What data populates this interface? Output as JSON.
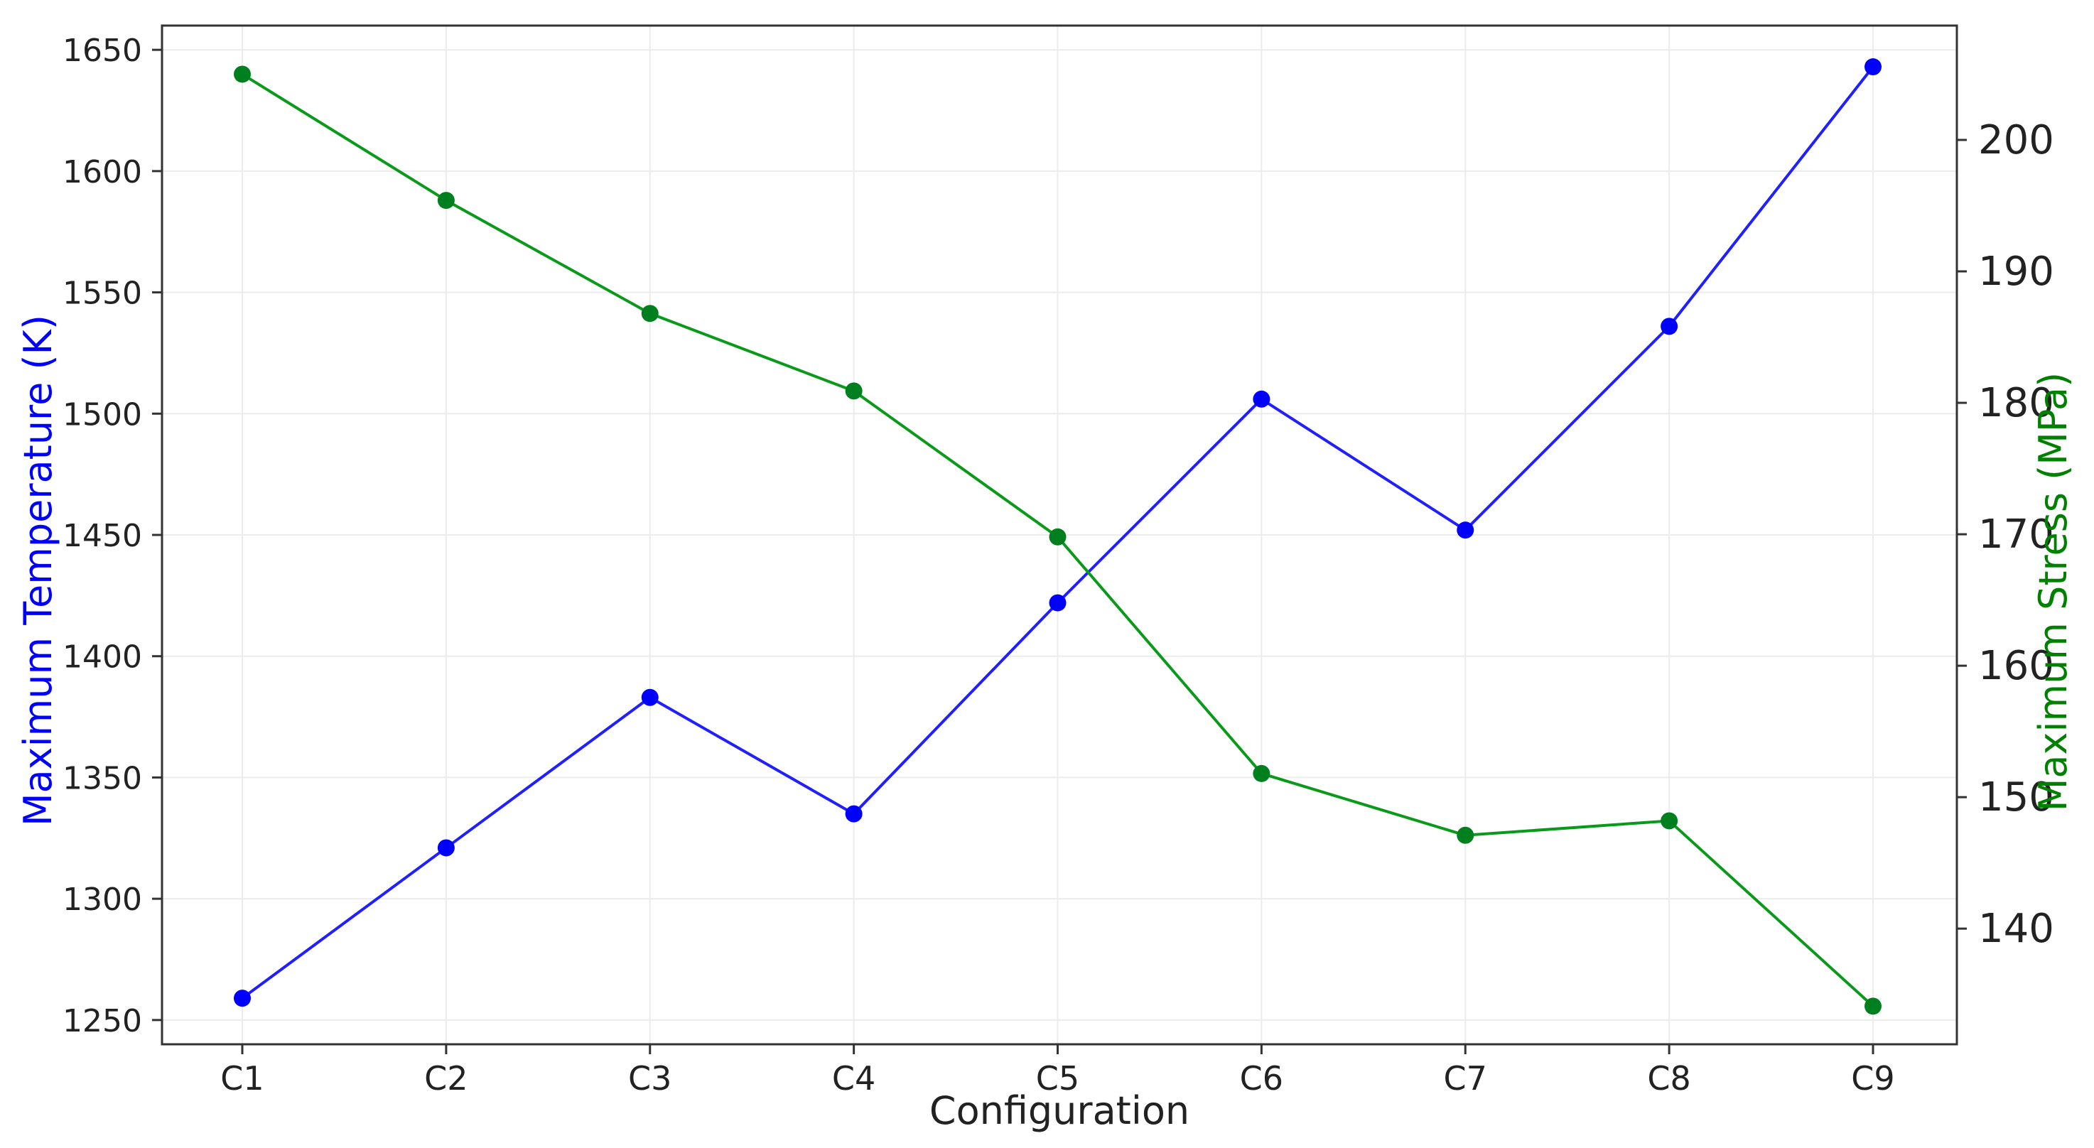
{
  "chart_data": {
    "type": "line",
    "xlabel": "Configuration",
    "categories": [
      "C1",
      "C2",
      "C3",
      "C4",
      "C5",
      "C6",
      "C7",
      "C8",
      "C9"
    ],
    "y_left": {
      "label": "Maximum Temperature (K)",
      "ticks": [
        1250,
        1300,
        1350,
        1400,
        1450,
        1500,
        1550,
        1600,
        1650
      ],
      "range": [
        1240,
        1660
      ],
      "color": "#0000ff"
    },
    "y_right": {
      "label": "Maximum Stress (MPa)",
      "ticks": [
        140,
        150,
        160,
        170,
        180,
        190,
        200
      ],
      "range": [
        131.2,
        208.7
      ],
      "color": "#008000"
    },
    "series": [
      {
        "name": "Maximum Temperature (K)",
        "axis": "left",
        "color": "#1f1fff",
        "marker_color": "#0000ff",
        "values": [
          1259,
          1321,
          1383,
          1335,
          1422,
          1506,
          1452,
          1536,
          1643
        ]
      },
      {
        "name": "Maximum Stress (MPa)",
        "axis": "right",
        "color": "#0a9a1a",
        "marker_color": "#007f1f",
        "values": [
          205,
          195.4,
          186.8,
          180.9,
          169.8,
          151.8,
          147.1,
          148.2,
          134.1
        ]
      }
    ],
    "grid": true,
    "legend": "none"
  }
}
